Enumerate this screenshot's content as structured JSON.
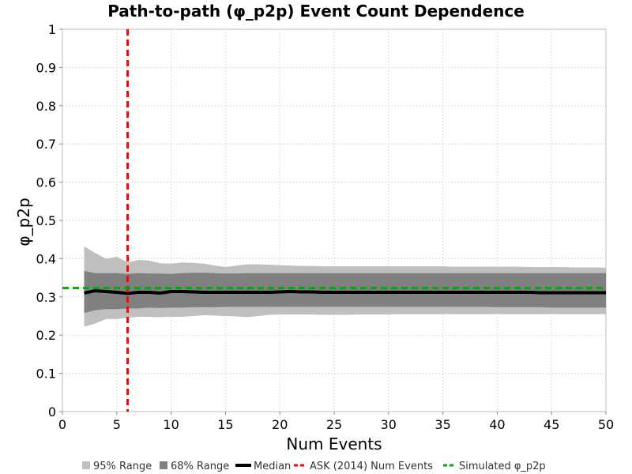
{
  "chart_data": {
    "type": "line",
    "title": "Path-to-path (φ_p2p) Event Count Dependence",
    "xlabel": "Num Events",
    "ylabel": "φ_p2p",
    "xlim": [
      0,
      50
    ],
    "ylim": [
      0,
      1
    ],
    "xticks": [
      0,
      5,
      10,
      15,
      20,
      25,
      30,
      35,
      40,
      45,
      50
    ],
    "yticks": [
      0,
      0.1,
      0.2,
      0.3,
      0.4,
      0.5,
      0.6,
      0.7,
      0.8,
      0.9,
      1
    ],
    "grid": true,
    "legend_position": "bottom",
    "x": [
      2,
      3,
      4,
      5,
      6,
      7,
      8,
      9,
      10,
      11,
      12,
      13,
      14,
      15,
      16,
      17,
      18,
      19,
      20,
      21,
      22,
      23,
      24,
      25,
      26,
      27,
      28,
      29,
      30,
      31,
      32,
      33,
      34,
      35,
      36,
      37,
      38,
      39,
      40,
      41,
      42,
      43,
      44,
      45,
      46,
      47,
      48,
      49,
      50
    ],
    "series": [
      {
        "name": "95% Range",
        "style": "band",
        "color": "#bfbfbf",
        "upper": [
          0.432,
          0.415,
          0.4,
          0.405,
          0.39,
          0.397,
          0.395,
          0.388,
          0.387,
          0.39,
          0.389,
          0.387,
          0.382,
          0.378,
          0.382,
          0.385,
          0.385,
          0.384,
          0.383,
          0.382,
          0.381,
          0.381,
          0.38,
          0.38,
          0.38,
          0.38,
          0.38,
          0.38,
          0.38,
          0.38,
          0.38,
          0.38,
          0.38,
          0.38,
          0.379,
          0.379,
          0.379,
          0.379,
          0.379,
          0.379,
          0.379,
          0.378,
          0.378,
          0.378,
          0.378,
          0.377,
          0.377,
          0.377,
          0.376
        ],
        "lower": [
          0.222,
          0.23,
          0.242,
          0.242,
          0.245,
          0.248,
          0.248,
          0.247,
          0.248,
          0.248,
          0.25,
          0.252,
          0.251,
          0.25,
          0.249,
          0.247,
          0.25,
          0.253,
          0.254,
          0.254,
          0.254,
          0.254,
          0.253,
          0.253,
          0.253,
          0.254,
          0.254,
          0.254,
          0.254,
          0.255,
          0.255,
          0.255,
          0.255,
          0.255,
          0.255,
          0.255,
          0.255,
          0.255,
          0.255,
          0.255,
          0.255,
          0.255,
          0.255,
          0.255,
          0.255,
          0.255,
          0.255,
          0.255,
          0.255
        ]
      },
      {
        "name": "68% Range",
        "style": "band",
        "color": "#808080",
        "upper": [
          0.368,
          0.362,
          0.362,
          0.362,
          0.36,
          0.362,
          0.361,
          0.361,
          0.36,
          0.362,
          0.363,
          0.363,
          0.362,
          0.361,
          0.361,
          0.362,
          0.362,
          0.362,
          0.362,
          0.362,
          0.362,
          0.362,
          0.362,
          0.362,
          0.362,
          0.362,
          0.362,
          0.362,
          0.362,
          0.362,
          0.362,
          0.362,
          0.362,
          0.362,
          0.362,
          0.362,
          0.362,
          0.362,
          0.362,
          0.362,
          0.362,
          0.362,
          0.362,
          0.362,
          0.362,
          0.362,
          0.362,
          0.362,
          0.362
        ],
        "lower": [
          0.258,
          0.265,
          0.268,
          0.268,
          0.27,
          0.27,
          0.272,
          0.271,
          0.272,
          0.272,
          0.273,
          0.273,
          0.273,
          0.274,
          0.274,
          0.274,
          0.274,
          0.274,
          0.274,
          0.274,
          0.274,
          0.274,
          0.274,
          0.274,
          0.274,
          0.274,
          0.274,
          0.274,
          0.274,
          0.274,
          0.274,
          0.274,
          0.274,
          0.274,
          0.274,
          0.274,
          0.274,
          0.274,
          0.273,
          0.273,
          0.273,
          0.273,
          0.273,
          0.272,
          0.272,
          0.272,
          0.272,
          0.272,
          0.272
        ]
      },
      {
        "name": "Median",
        "style": "line",
        "color": "#000000",
        "values": [
          0.31,
          0.316,
          0.314,
          0.312,
          0.309,
          0.312,
          0.312,
          0.31,
          0.314,
          0.314,
          0.313,
          0.312,
          0.312,
          0.312,
          0.312,
          0.312,
          0.312,
          0.312,
          0.313,
          0.314,
          0.313,
          0.313,
          0.312,
          0.312,
          0.312,
          0.312,
          0.312,
          0.312,
          0.312,
          0.312,
          0.312,
          0.312,
          0.312,
          0.312,
          0.312,
          0.312,
          0.312,
          0.312,
          0.312,
          0.312,
          0.312,
          0.312,
          0.311,
          0.311,
          0.311,
          0.311,
          0.311,
          0.311,
          0.311
        ]
      },
      {
        "name": "ASK (2014) Num Events",
        "style": "vline",
        "color": "#ff0000",
        "x": 6
      },
      {
        "name": "Simulated φ_p2p",
        "style": "hline",
        "color": "#00aa00",
        "y": 0.323
      }
    ]
  }
}
